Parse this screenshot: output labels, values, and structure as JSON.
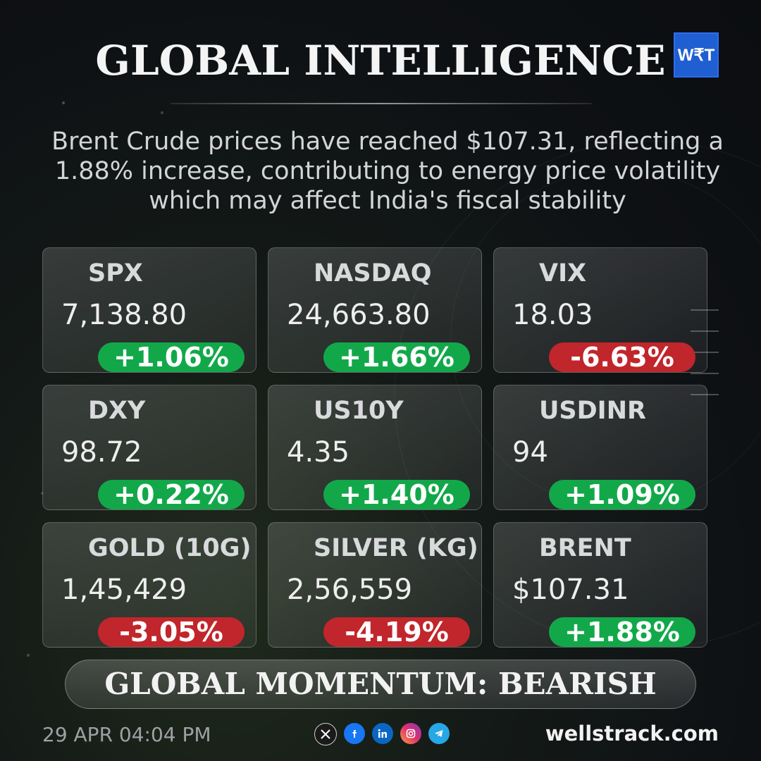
{
  "header": {
    "title": "GLOBAL INTELLIGENCE",
    "logo_text": "W₹T"
  },
  "headline": "Brent Crude prices have reached $107.31, reflecting a 1.88% increase, contributing to energy price volatility which may affect India's fiscal stability",
  "cards": [
    {
      "name": "SPX",
      "value": "7,138.80",
      "change": "+1.06%",
      "direction": "up"
    },
    {
      "name": "NASDAQ",
      "value": "24,663.80",
      "change": "+1.66%",
      "direction": "up"
    },
    {
      "name": "VIX",
      "value": "18.03",
      "change": "-6.63%",
      "direction": "down"
    },
    {
      "name": "DXY",
      "value": "98.72",
      "change": "+0.22%",
      "direction": "up"
    },
    {
      "name": "US10Y",
      "value": "4.35",
      "change": "+1.40%",
      "direction": "up"
    },
    {
      "name": "USDINR",
      "value": "94",
      "change": "+1.09%",
      "direction": "up"
    },
    {
      "name": "GOLD (10G)",
      "value": "1,45,429",
      "change": "-3.05%",
      "direction": "down"
    },
    {
      "name": "SILVER (KG)",
      "value": "2,56,559",
      "change": "-4.19%",
      "direction": "down"
    },
    {
      "name": "BRENT",
      "value": "$107.31",
      "change": "+1.88%",
      "direction": "up"
    }
  ],
  "momentum": "GLOBAL MOMENTUM: BEARISH",
  "footer": {
    "timestamp": "29 APR 04:04 PM",
    "website": "wellstrack.com",
    "social_icons": [
      "x-icon",
      "facebook-icon",
      "linkedin-icon",
      "instagram-icon",
      "telegram-icon"
    ]
  },
  "colors": {
    "up": "#12a84a",
    "down": "#c0262b",
    "logo": "#1f5fd1"
  }
}
